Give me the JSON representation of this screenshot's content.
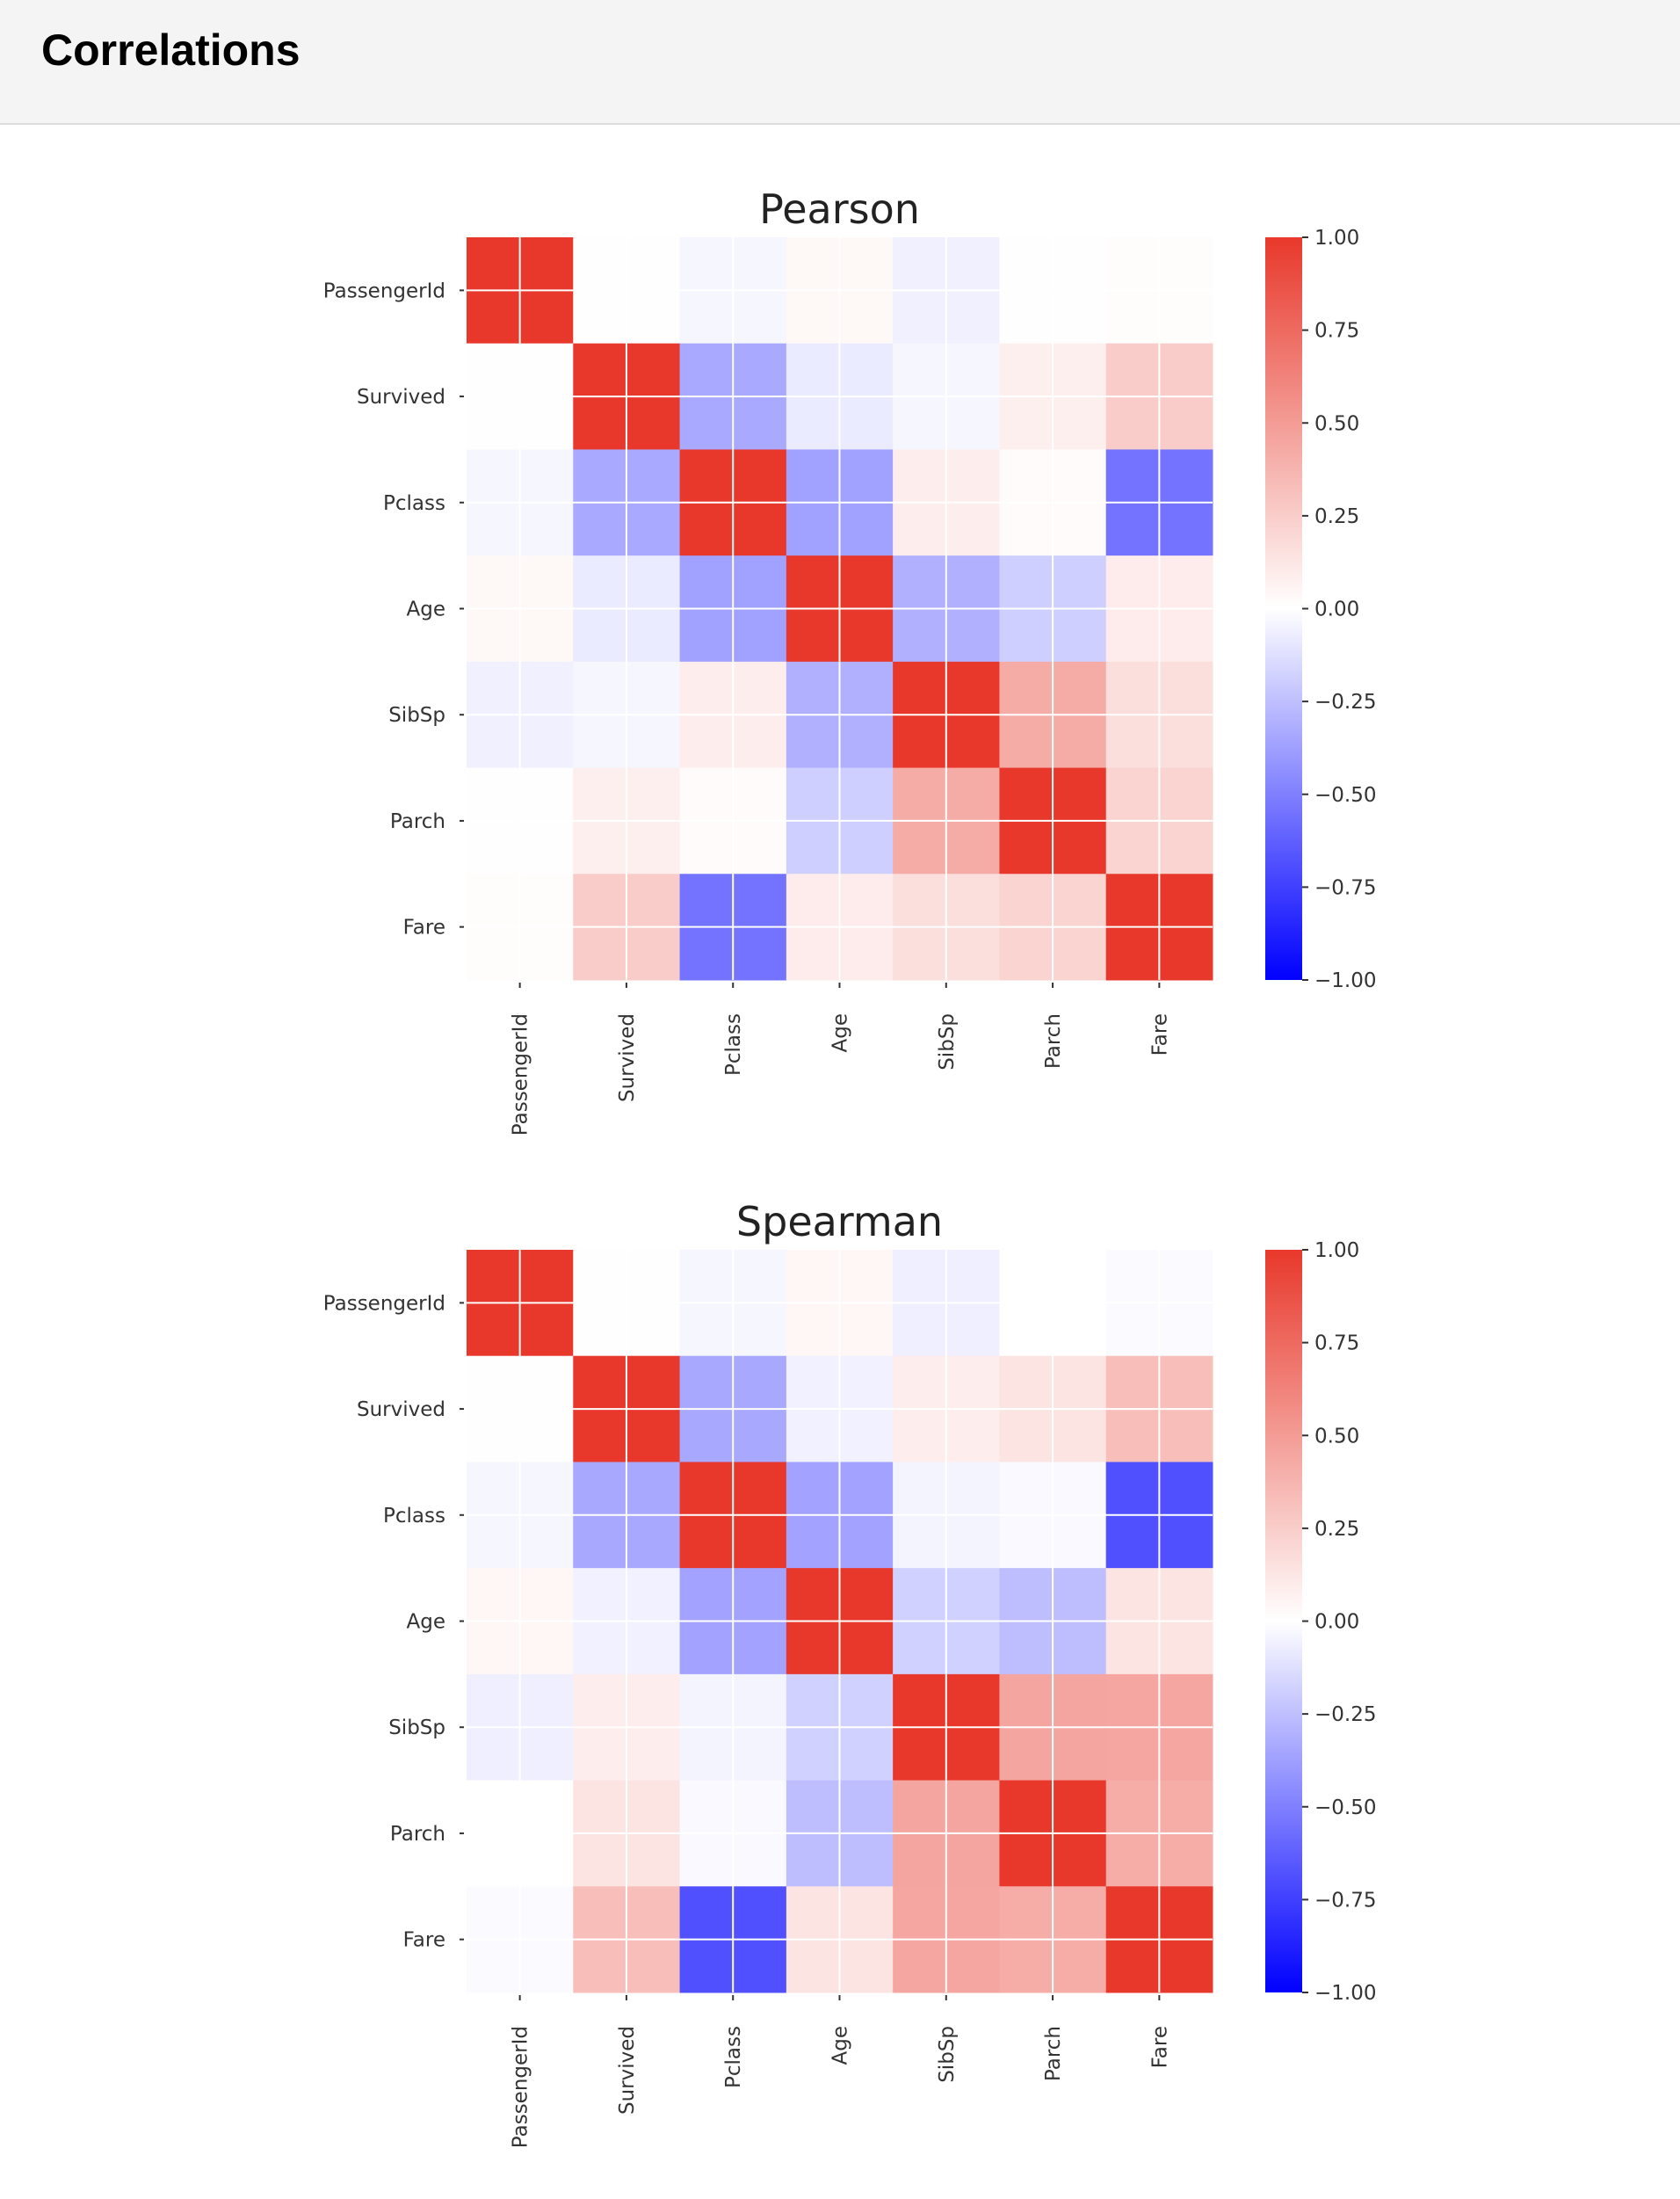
{
  "header": {
    "title": "Correlations"
  },
  "chart_data": [
    {
      "type": "heatmap",
      "title": "Pearson",
      "variables": [
        "PassengerId",
        "Survived",
        "Pclass",
        "Age",
        "SibSp",
        "Parch",
        "Fare"
      ],
      "matrix": [
        [
          1.0,
          -0.005,
          -0.035,
          0.037,
          -0.058,
          -0.002,
          0.013
        ],
        [
          -0.005,
          1.0,
          -0.338,
          -0.077,
          -0.035,
          0.082,
          0.257
        ],
        [
          -0.035,
          -0.338,
          1.0,
          -0.369,
          0.083,
          0.018,
          -0.549
        ],
        [
          0.037,
          -0.077,
          -0.369,
          1.0,
          -0.308,
          -0.189,
          0.096
        ],
        [
          -0.058,
          -0.035,
          0.083,
          -0.308,
          1.0,
          0.415,
          0.16
        ],
        [
          -0.002,
          0.082,
          0.018,
          -0.189,
          0.415,
          1.0,
          0.216
        ],
        [
          0.013,
          0.257,
          -0.549,
          0.096,
          0.16,
          0.216,
          1.0
        ]
      ],
      "colorbar": {
        "range": [
          -1,
          1
        ],
        "ticks": [
          "1.00",
          "0.75",
          "0.50",
          "0.25",
          "0.00",
          "−0.25",
          "−0.50",
          "−0.75",
          "−1.00"
        ]
      },
      "colors": {
        "positive": "#e8382b",
        "zero": "#ffffff",
        "negative": "#0000ff"
      }
    },
    {
      "type": "heatmap",
      "title": "Spearman",
      "variables": [
        "PassengerId",
        "Survived",
        "Pclass",
        "Age",
        "SibSp",
        "Parch",
        "Fare"
      ],
      "matrix": [
        [
          1.0,
          -0.005,
          -0.034,
          0.041,
          -0.061,
          0.001,
          -0.014
        ],
        [
          -0.005,
          1.0,
          -0.34,
          -0.053,
          0.089,
          0.138,
          0.324
        ],
        [
          -0.034,
          -0.34,
          1.0,
          -0.361,
          -0.044,
          -0.023,
          -0.688
        ],
        [
          0.041,
          -0.053,
          -0.361,
          1.0,
          -0.182,
          -0.254,
          0.135
        ],
        [
          -0.061,
          0.089,
          -0.044,
          -0.182,
          1.0,
          0.45,
          0.447
        ],
        [
          0.001,
          0.138,
          -0.023,
          -0.254,
          0.45,
          1.0,
          0.41
        ],
        [
          -0.014,
          0.324,
          -0.688,
          0.135,
          0.447,
          0.41,
          1.0
        ]
      ],
      "colorbar": {
        "range": [
          -1,
          1
        ],
        "ticks": [
          "1.00",
          "0.75",
          "0.50",
          "0.25",
          "0.00",
          "−0.25",
          "−0.50",
          "−0.75",
          "−1.00"
        ]
      },
      "colors": {
        "positive": "#e8382b",
        "zero": "#ffffff",
        "negative": "#0000ff"
      }
    }
  ]
}
